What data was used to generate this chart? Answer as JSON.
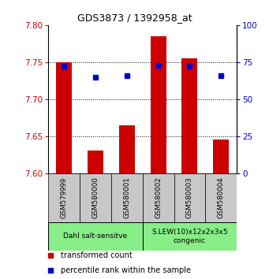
{
  "title": "GDS3873 / 1392958_at",
  "samples": [
    "GSM579999",
    "GSM580000",
    "GSM580001",
    "GSM580002",
    "GSM580003",
    "GSM580004"
  ],
  "transformed_counts": [
    7.75,
    7.63,
    7.665,
    7.785,
    7.755,
    7.645
  ],
  "percentile_ranks": [
    72,
    65,
    66,
    73,
    72,
    66
  ],
  "ylim_left": [
    7.6,
    7.8
  ],
  "ylim_right": [
    0,
    100
  ],
  "yticks_left": [
    7.6,
    7.65,
    7.7,
    7.75,
    7.8
  ],
  "yticks_right": [
    0,
    25,
    50,
    75,
    100
  ],
  "bar_color": "#cc0000",
  "dot_color": "#0000cc",
  "bar_width": 0.5,
  "background_color": "#ffffff",
  "strain_groups": [
    {
      "label": "Dahl salt-sensitve",
      "samples": [
        0,
        1,
        2
      ],
      "color": "#88ee88"
    },
    {
      "label": "S.LEW(10)x12x2x3x5\ncongenic",
      "samples": [
        3,
        4,
        5
      ],
      "color": "#88ee88"
    }
  ],
  "tick_label_color_left": "#cc0000",
  "tick_label_color_right": "#0000cc",
  "legend_items": [
    {
      "color": "#cc0000",
      "label": "transformed count"
    },
    {
      "color": "#0000cc",
      "label": "percentile rank within the sample"
    }
  ],
  "x_tick_bg_color": "#c8c8c8"
}
